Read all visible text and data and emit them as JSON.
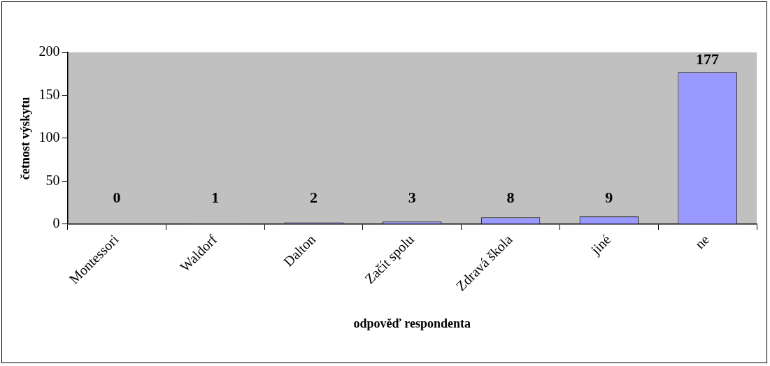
{
  "chart_data": {
    "type": "bar",
    "categories": [
      "Montessori",
      "Waldorf",
      "Dalton",
      "Začít spolu",
      "Zdravá škola",
      "jiné",
      "ne"
    ],
    "values": [
      0,
      1,
      2,
      3,
      8,
      9,
      177
    ],
    "color": "#9999ff",
    "xlabel": "odpověď respondenta",
    "ylabel": "četnost výskytu",
    "ylim": [
      0,
      200
    ],
    "yticks": [
      0,
      50,
      100,
      150,
      200
    ],
    "grid": false,
    "legend": false,
    "data_labels": true
  }
}
